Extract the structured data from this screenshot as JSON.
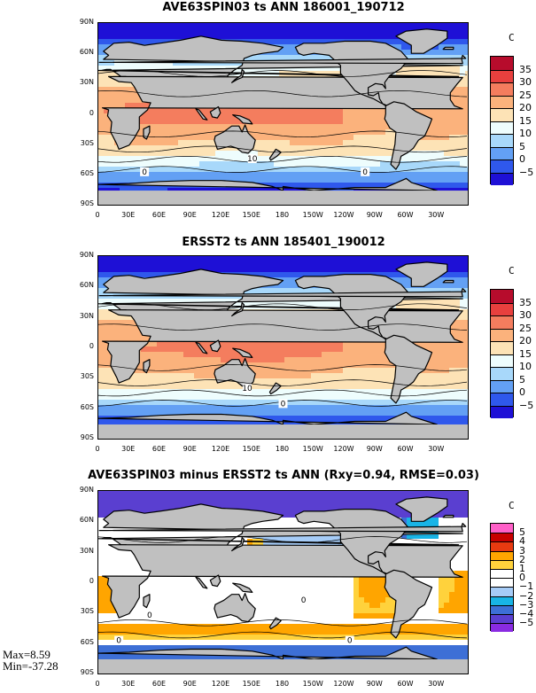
{
  "chart_data": [
    {
      "type": "heatmap",
      "title": "AVE63SPIN03 ts ANN 186001_190712",
      "unit": "C",
      "xlabels": [
        "0",
        "30E",
        "60E",
        "90E",
        "120E",
        "150E",
        "180",
        "150W",
        "120W",
        "90W",
        "60W",
        "30W"
      ],
      "ylabels": [
        "90N",
        "60N",
        "30N",
        "0",
        "30S",
        "60S",
        "90S"
      ],
      "contour_labels": [
        "0",
        "10",
        "0"
      ],
      "levels": [
        -5,
        0,
        5,
        10,
        15,
        20,
        25,
        30,
        35
      ],
      "colors": [
        "#1e10d6",
        "#2f58ec",
        "#63a0f4",
        "#a8d8fa",
        "#eefdfd",
        "#fde3b6",
        "#fbb27c",
        "#f47d5e",
        "#e8403e",
        "#b70c2c"
      ]
    },
    {
      "type": "heatmap",
      "title": "ERSST2 ts ANN 185401_190012",
      "unit": "C",
      "xlabels": [
        "0",
        "30E",
        "60E",
        "90E",
        "120E",
        "150E",
        "180",
        "150W",
        "120W",
        "90W",
        "60W",
        "30W"
      ],
      "ylabels": [
        "90N",
        "60N",
        "30N",
        "0",
        "30S",
        "60S",
        "90S"
      ],
      "contour_labels": [
        "10",
        "0"
      ],
      "levels": [
        -5,
        0,
        5,
        10,
        15,
        20,
        25,
        30,
        35
      ],
      "colors": [
        "#1e10d6",
        "#2f58ec",
        "#63a0f4",
        "#a8d8fa",
        "#eefdfd",
        "#fde3b6",
        "#fbb27c",
        "#f47d5e",
        "#e8403e",
        "#b70c2c"
      ]
    },
    {
      "type": "heatmap",
      "title": "AVE63SPIN03 minus ERSST2 ts ANN (Rxy=0.94, RMSE=0.03)",
      "unit": "C",
      "xlabels": [
        "0",
        "30E",
        "60E",
        "90E",
        "120E",
        "150E",
        "180",
        "150W",
        "120W",
        "90W",
        "60W",
        "30W"
      ],
      "ylabels": [
        "90N",
        "60N",
        "30N",
        "0",
        "30S",
        "60S",
        "90S"
      ],
      "contour_labels": [
        "0",
        "0",
        "0",
        "0"
      ],
      "levels": [
        -5,
        -4,
        -3,
        -2,
        -1,
        0,
        1,
        2,
        3,
        4,
        5
      ],
      "colors": [
        "#8a2be2",
        "#5a3fd0",
        "#3d6fd6",
        "#18b4e6",
        "#a6ccf7",
        "#ffffff",
        "#ffffff",
        "#ffd23c",
        "#ffa500",
        "#e83a10",
        "#c80000",
        "#ff5fc8"
      ],
      "max": "Max=8.59",
      "min": "Min=-37.28"
    }
  ]
}
